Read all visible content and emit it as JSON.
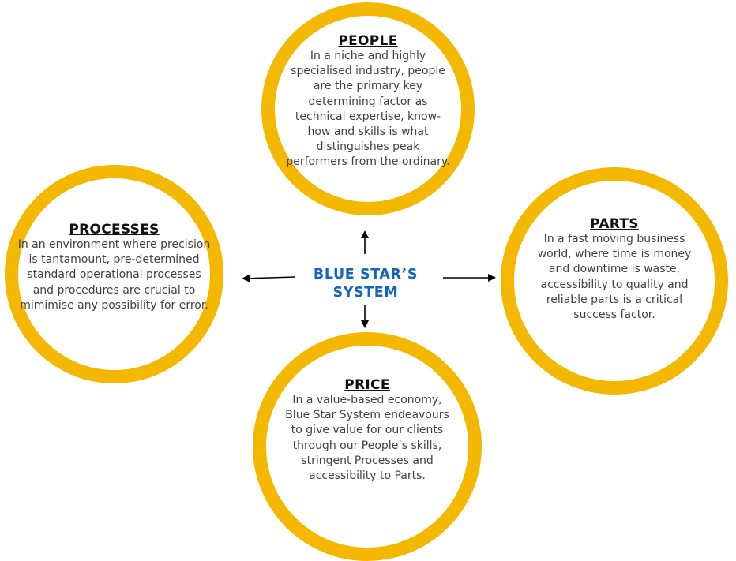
{
  "center": {
    "line1": "BLUE STAR’S",
    "line2": "SYSTEM"
  },
  "nodes": {
    "people": {
      "title": "PEOPLE",
      "text": "In a niche and highly specialised industry, people are the primary key determining factor as technical expertise, know-how and skills is what distinguishes peak performers from the ordinary."
    },
    "processes": {
      "title": "PROCESSES",
      "text": "In an environment where precision is tantamount, pre-determined standard operational processes and procedures are crucial to mimimise any possibility for error."
    },
    "parts": {
      "title": "PARTS",
      "text": "In a fast moving business world, where time is money and downtime is waste, accessibility to quality and reliable parts is a critical success factor."
    },
    "price": {
      "title": "PRICE",
      "text": "In a value-based economy, Blue Star System endeavours to give value for our clients through our People’s skills, stringent Processes and accessibility to Parts."
    }
  },
  "colors": {
    "ring": "#F5B800",
    "center_text": "#1565C0",
    "body_text": "#404040",
    "arrow": "#000000"
  }
}
